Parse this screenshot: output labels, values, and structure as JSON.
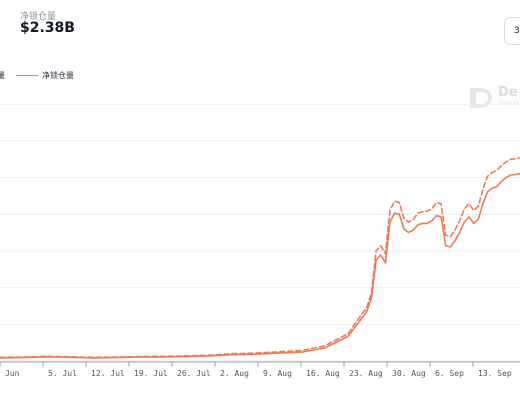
{
  "header": {
    "metric_label": "净锁仓量",
    "metric_value": "$2.38B",
    "range_button": "3"
  },
  "legend": {
    "partial_left_label": "量",
    "series_label": "净锁仓量"
  },
  "watermark": {
    "text": "De",
    "subtext": "Your D"
  },
  "colors": {
    "series": "#ef7b55",
    "grid": "#eceef2",
    "axis": "#9ca3af",
    "tick_text": "#4b5563"
  },
  "chart_data": {
    "type": "line",
    "x_tick_labels": [
      "Jun",
      "5. Jul",
      "12. Jul",
      "19. Jul",
      "26. Jul",
      "2. Aug",
      "9. Aug",
      "16. Aug",
      "23. Aug",
      "30. Aug",
      "6. Sep",
      "13. Sep"
    ],
    "y_fraction_grid": [
      0,
      0.14,
      0.28,
      0.42,
      0.56,
      0.7,
      0.84,
      0.98
    ],
    "series": [
      {
        "name": "净锁仓量",
        "style": "solid",
        "x": [
          0,
          5,
          10,
          15,
          20,
          25,
          30,
          35,
          40,
          45,
          50,
          55,
          60,
          65,
          70,
          75,
          78,
          79,
          80,
          81,
          82,
          83,
          84,
          85,
          86,
          87,
          88,
          89,
          90,
          91,
          92,
          93,
          94,
          95,
          96,
          97,
          98,
          99,
          100,
          101,
          102,
          103,
          104,
          105,
          106,
          107,
          108,
          109,
          110,
          111,
          112
        ],
        "values": [
          0.012,
          0.013,
          0.016,
          0.014,
          0.012,
          0.013,
          0.015,
          0.015,
          0.017,
          0.019,
          0.024,
          0.026,
          0.03,
          0.034,
          0.05,
          0.095,
          0.165,
          0.19,
          0.24,
          0.385,
          0.405,
          0.375,
          0.53,
          0.565,
          0.56,
          0.505,
          0.49,
          0.5,
          0.52,
          0.525,
          0.525,
          0.535,
          0.555,
          0.55,
          0.44,
          0.435,
          0.46,
          0.49,
          0.53,
          0.55,
          0.525,
          0.54,
          0.6,
          0.645,
          0.66,
          0.665,
          0.685,
          0.7,
          0.71,
          0.712,
          0.715
        ]
      },
      {
        "name": "",
        "style": "dashed",
        "x": [
          0,
          5,
          10,
          15,
          20,
          25,
          30,
          35,
          40,
          45,
          50,
          55,
          60,
          65,
          70,
          75,
          78,
          79,
          80,
          81,
          82,
          83,
          84,
          85,
          86,
          87,
          88,
          89,
          90,
          91,
          92,
          93,
          94,
          95,
          96,
          97,
          98,
          99,
          100,
          101,
          102,
          103,
          104,
          105,
          106,
          107,
          108,
          109,
          110,
          111,
          112
        ],
        "values": [
          0.014,
          0.015,
          0.018,
          0.016,
          0.014,
          0.015,
          0.017,
          0.018,
          0.02,
          0.022,
          0.028,
          0.03,
          0.035,
          0.04,
          0.058,
          0.105,
          0.18,
          0.205,
          0.26,
          0.42,
          0.44,
          0.41,
          0.575,
          0.61,
          0.605,
          0.545,
          0.53,
          0.54,
          0.565,
          0.57,
          0.572,
          0.58,
          0.605,
          0.6,
          0.48,
          0.475,
          0.5,
          0.535,
          0.58,
          0.6,
          0.575,
          0.59,
          0.655,
          0.705,
          0.72,
          0.728,
          0.745,
          0.76,
          0.77,
          0.772,
          0.775
        ]
      }
    ]
  }
}
